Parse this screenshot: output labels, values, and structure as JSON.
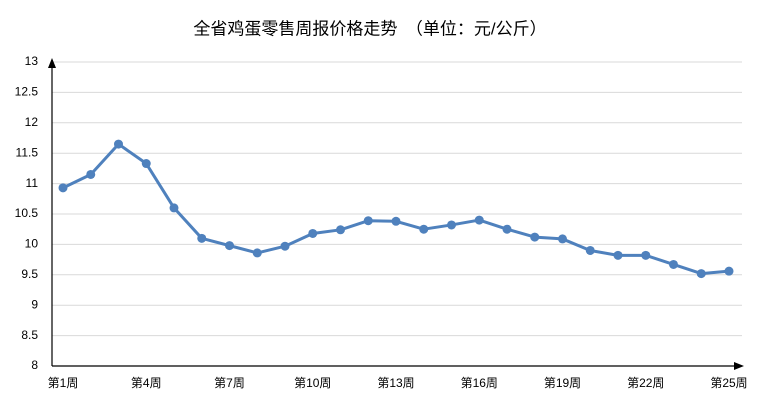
{
  "chart_data": {
    "type": "line",
    "title": "全省鸡蛋零售周报价格走势　（单位：元/公斤）",
    "categories": [
      "第1周",
      null,
      null,
      "第4周",
      null,
      null,
      "第7周",
      null,
      null,
      "第10周",
      null,
      null,
      "第13周",
      null,
      null,
      "第16周",
      null,
      null,
      "第19周",
      null,
      null,
      "第22周",
      null,
      null,
      "第25周"
    ],
    "values": [
      10.93,
      11.15,
      11.65,
      11.33,
      10.6,
      10.1,
      9.98,
      9.86,
      9.97,
      10.18,
      10.24,
      10.39,
      10.38,
      10.25,
      10.32,
      10.4,
      10.25,
      10.12,
      10.09,
      9.9,
      9.82,
      9.82,
      9.67,
      9.52,
      9.56
    ],
    "color": "#4f81bd",
    "ylim": [
      8,
      13
    ],
    "yticks": [
      8,
      8.5,
      9,
      9.5,
      10,
      10.5,
      11,
      11.5,
      12,
      12.5,
      13
    ],
    "grid": true
  }
}
